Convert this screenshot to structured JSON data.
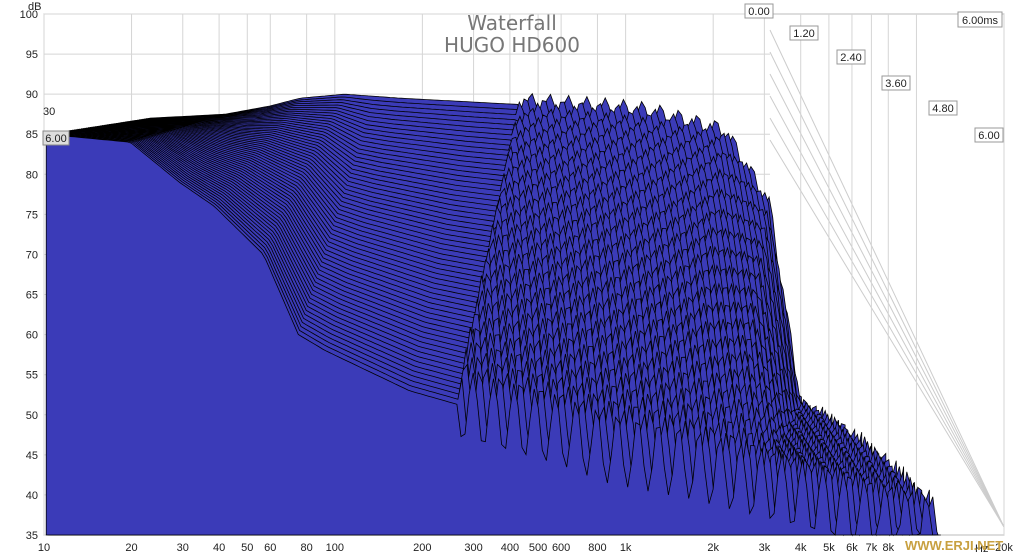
{
  "watermark": "WWW.ERJI.NET",
  "chart_data": {
    "type": "waterfall",
    "title": "Waterfall",
    "subtitle": "HUGO HD600",
    "xlabel": "Hz",
    "ylabel": "dB",
    "x_scale": "log",
    "xlim": [
      10,
      20000
    ],
    "ylim": [
      35,
      100
    ],
    "x_ticks": [
      10,
      20,
      30,
      40,
      50,
      60,
      80,
      100,
      200,
      300,
      400,
      500,
      600,
      800,
      1000,
      2000,
      3000,
      4000,
      5000,
      6000,
      7000,
      8000,
      10000,
      20000
    ],
    "x_tick_labels": [
      "10",
      "20",
      "30",
      "40",
      "50",
      "60",
      "80",
      "100",
      "200",
      "300",
      "400",
      "500",
      "600",
      "800",
      "1k",
      "2k",
      "3k",
      "4k",
      "5k",
      "6k",
      "7k",
      "8k",
      "",
      "20k"
    ],
    "y_ticks": [
      35,
      40,
      45,
      50,
      55,
      60,
      65,
      70,
      75,
      80,
      85,
      90,
      95,
      100
    ],
    "time_unit": "ms",
    "time_ticks": [
      "0.00",
      "1.20",
      "2.40",
      "3.60",
      "4.80",
      "6.00"
    ],
    "time_label_6": "6.00ms",
    "edge_labels": [
      "30",
      "6.00"
    ],
    "fill_color": "#3b3bb8",
    "line_color": "#000000",
    "slices": 60,
    "front_curve": {
      "freq": [
        10,
        20,
        30,
        40,
        60,
        100,
        200,
        400,
        700,
        1000,
        2000,
        3000,
        4000
      ],
      "db": [
        87,
        87.5,
        88.5,
        89.5,
        90,
        89.5,
        89,
        88.5,
        88,
        87.5,
        85,
        76,
        51
      ]
    },
    "last_curve": {
      "freq": [
        10,
        20,
        30,
        40,
        60,
        80,
        100,
        200,
        400,
        700,
        1000,
        2000,
        4000,
        8000,
        16000
      ],
      "db": [
        85,
        84,
        79,
        76,
        70,
        60,
        58,
        53,
        50,
        48,
        46,
        44,
        41,
        38,
        35
      ]
    }
  }
}
